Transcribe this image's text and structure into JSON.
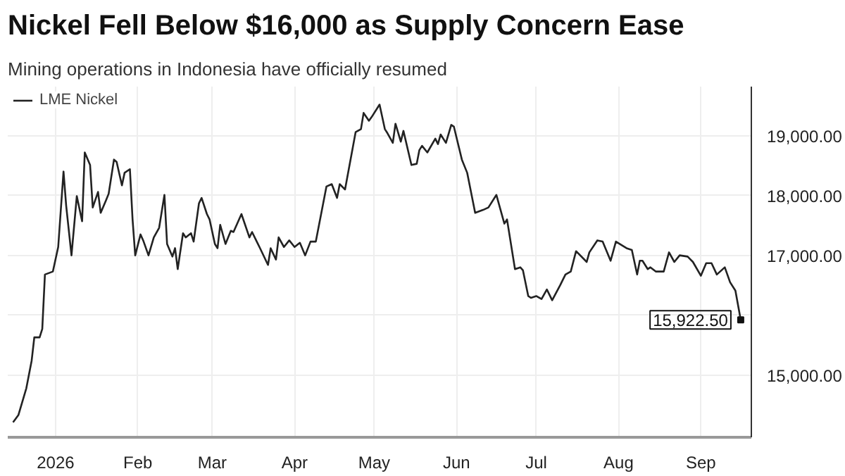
{
  "chart_data": {
    "type": "line",
    "title": "Nickel Fell Below $16,000 as Supply Concern Ease",
    "subtitle": "Mining operations in Indonesia have officially resumed",
    "x": [
      "2025-12-16",
      "2025-12-18",
      "2025-12-21",
      "2025-12-23",
      "2025-12-24",
      "2025-12-26",
      "2025-12-27",
      "2025-12-28",
      "2025-12-31",
      "2026-01-02",
      "2026-01-04",
      "2026-01-05",
      "2026-01-07",
      "2026-01-09",
      "2026-01-11",
      "2026-01-12",
      "2026-01-14",
      "2026-01-15",
      "2026-01-17",
      "2026-01-18",
      "2026-01-20",
      "2026-01-21",
      "2026-01-23",
      "2026-01-24",
      "2026-01-26",
      "2026-01-27",
      "2026-01-29",
      "2026-01-30",
      "2026-01-31",
      "2026-02-02",
      "2026-02-03",
      "2026-02-05",
      "2026-02-07",
      "2026-02-09",
      "2026-02-11",
      "2026-02-12",
      "2026-02-14",
      "2026-02-15",
      "2026-02-16",
      "2026-02-18",
      "2026-02-19",
      "2026-02-21",
      "2026-02-22",
      "2026-02-24",
      "2026-02-25",
      "2026-02-27",
      "2026-02-28",
      "2026-03-02",
      "2026-03-03",
      "2026-03-04",
      "2026-03-06",
      "2026-03-08",
      "2026-03-09",
      "2026-03-12",
      "2026-03-15",
      "2026-03-16",
      "2026-03-18",
      "2026-03-19",
      "2026-03-22",
      "2026-03-23",
      "2026-03-25",
      "2026-03-26",
      "2026-03-28",
      "2026-03-30",
      "2026-04-01",
      "2026-04-03",
      "2026-04-05",
      "2026-04-07",
      "2026-04-09",
      "2026-04-13",
      "2026-04-15",
      "2026-04-17",
      "2026-04-18",
      "2026-04-20",
      "2026-04-24",
      "2026-04-26",
      "2026-04-27",
      "2026-04-29",
      "2026-04-30",
      "2026-05-03",
      "2026-05-05",
      "2026-05-06",
      "2026-05-08",
      "2026-05-09",
      "2026-05-11",
      "2026-05-12",
      "2026-05-15",
      "2026-05-17",
      "2026-05-18",
      "2026-05-19",
      "2026-05-21",
      "2026-05-24",
      "2026-05-25",
      "2026-05-26",
      "2026-05-28",
      "2026-05-30",
      "2026-05-31",
      "2026-06-03",
      "2026-06-05",
      "2026-06-08",
      "2026-06-11",
      "2026-06-13",
      "2026-06-16",
      "2026-06-19",
      "2026-06-20",
      "2026-06-23",
      "2026-06-25",
      "2026-06-26",
      "2026-06-28",
      "2026-06-29",
      "2026-07-01",
      "2026-07-03",
      "2026-07-05",
      "2026-07-07",
      "2026-07-10",
      "2026-07-12",
      "2026-07-14",
      "2026-07-16",
      "2026-07-20",
      "2026-07-21",
      "2026-07-24",
      "2026-07-26",
      "2026-07-29",
      "2026-07-31",
      "2026-08-04",
      "2026-08-06",
      "2026-08-08",
      "2026-08-09",
      "2026-08-10",
      "2026-08-12",
      "2026-08-13",
      "2026-08-15",
      "2026-08-18",
      "2026-08-20",
      "2026-08-22",
      "2026-08-24",
      "2026-08-27",
      "2026-08-29",
      "2026-09-01",
      "2026-09-03",
      "2026-09-05",
      "2026-09-07",
      "2026-09-10",
      "2026-09-12",
      "2026-09-14",
      "2026-09-16"
    ],
    "series": [
      {
        "name": "LME Nickel",
        "color": "#222222",
        "values": [
          14210,
          14330,
          14780,
          15240,
          15630,
          15630,
          15770,
          16680,
          16730,
          17140,
          18400,
          17830,
          17000,
          17990,
          17570,
          18720,
          18510,
          17800,
          18060,
          17710,
          17920,
          18030,
          18600,
          18560,
          18170,
          18380,
          18440,
          17600,
          17000,
          17350,
          17250,
          17000,
          17300,
          17460,
          18010,
          17190,
          16980,
          17120,
          16770,
          17370,
          17300,
          17370,
          17230,
          17870,
          17960,
          17690,
          17600,
          17190,
          17120,
          17510,
          17190,
          17410,
          17390,
          17690,
          17300,
          17390,
          17210,
          17120,
          16840,
          17120,
          16930,
          17300,
          17140,
          17250,
          17140,
          17210,
          17000,
          17230,
          17230,
          18150,
          18190,
          17960,
          18190,
          18100,
          19060,
          19110,
          19380,
          19250,
          19310,
          19520,
          19110,
          19040,
          18880,
          19200,
          18900,
          19080,
          18510,
          18530,
          18760,
          18830,
          18720,
          18950,
          18860,
          19020,
          18880,
          19180,
          19150,
          18600,
          18380,
          17710,
          17760,
          17800,
          18010,
          17530,
          17600,
          16770,
          16800,
          16750,
          16320,
          16290,
          16320,
          16270,
          16430,
          16250,
          16500,
          16680,
          16730,
          17070,
          16890,
          17050,
          17250,
          17230,
          16910,
          17230,
          17120,
          17090,
          16680,
          16910,
          16910,
          16770,
          16800,
          16730,
          16730,
          17050,
          16890,
          17000,
          16980,
          16890,
          16660,
          16870,
          16870,
          16680,
          16800,
          16550,
          16410,
          15922.5
        ]
      }
    ],
    "xlim": [
      "2025-12-14",
      "2026-09-20"
    ],
    "xticks": [
      {
        "value": "2026-01-01",
        "label": "2026"
      },
      {
        "value": "2026-02-01",
        "label": "Feb"
      },
      {
        "value": "2026-03-01",
        "label": "Mar"
      },
      {
        "value": "2026-04-01",
        "label": "Apr"
      },
      {
        "value": "2026-05-01",
        "label": "May"
      },
      {
        "value": "2026-06-01",
        "label": "Jun"
      },
      {
        "value": "2026-07-01",
        "label": "Jul"
      },
      {
        "value": "2026-08-01",
        "label": "Aug"
      },
      {
        "value": "2026-09-01",
        "label": "Sep"
      }
    ],
    "ylim": [
      13960,
      19820
    ],
    "yticks": [
      {
        "value": 15000,
        "label": "15,000.00"
      },
      {
        "value": 16000,
        "label": null
      },
      {
        "value": 17000,
        "label": "17,000.00"
      },
      {
        "value": 18000,
        "label": "18,000.00"
      },
      {
        "value": 19000,
        "label": "19,000.00"
      }
    ],
    "annotations": [
      {
        "text": "15,922.50",
        "x": "2026-09-16",
        "y": 15922.5
      }
    ],
    "grid": true,
    "legend": "top left",
    "line_style": "solid"
  }
}
